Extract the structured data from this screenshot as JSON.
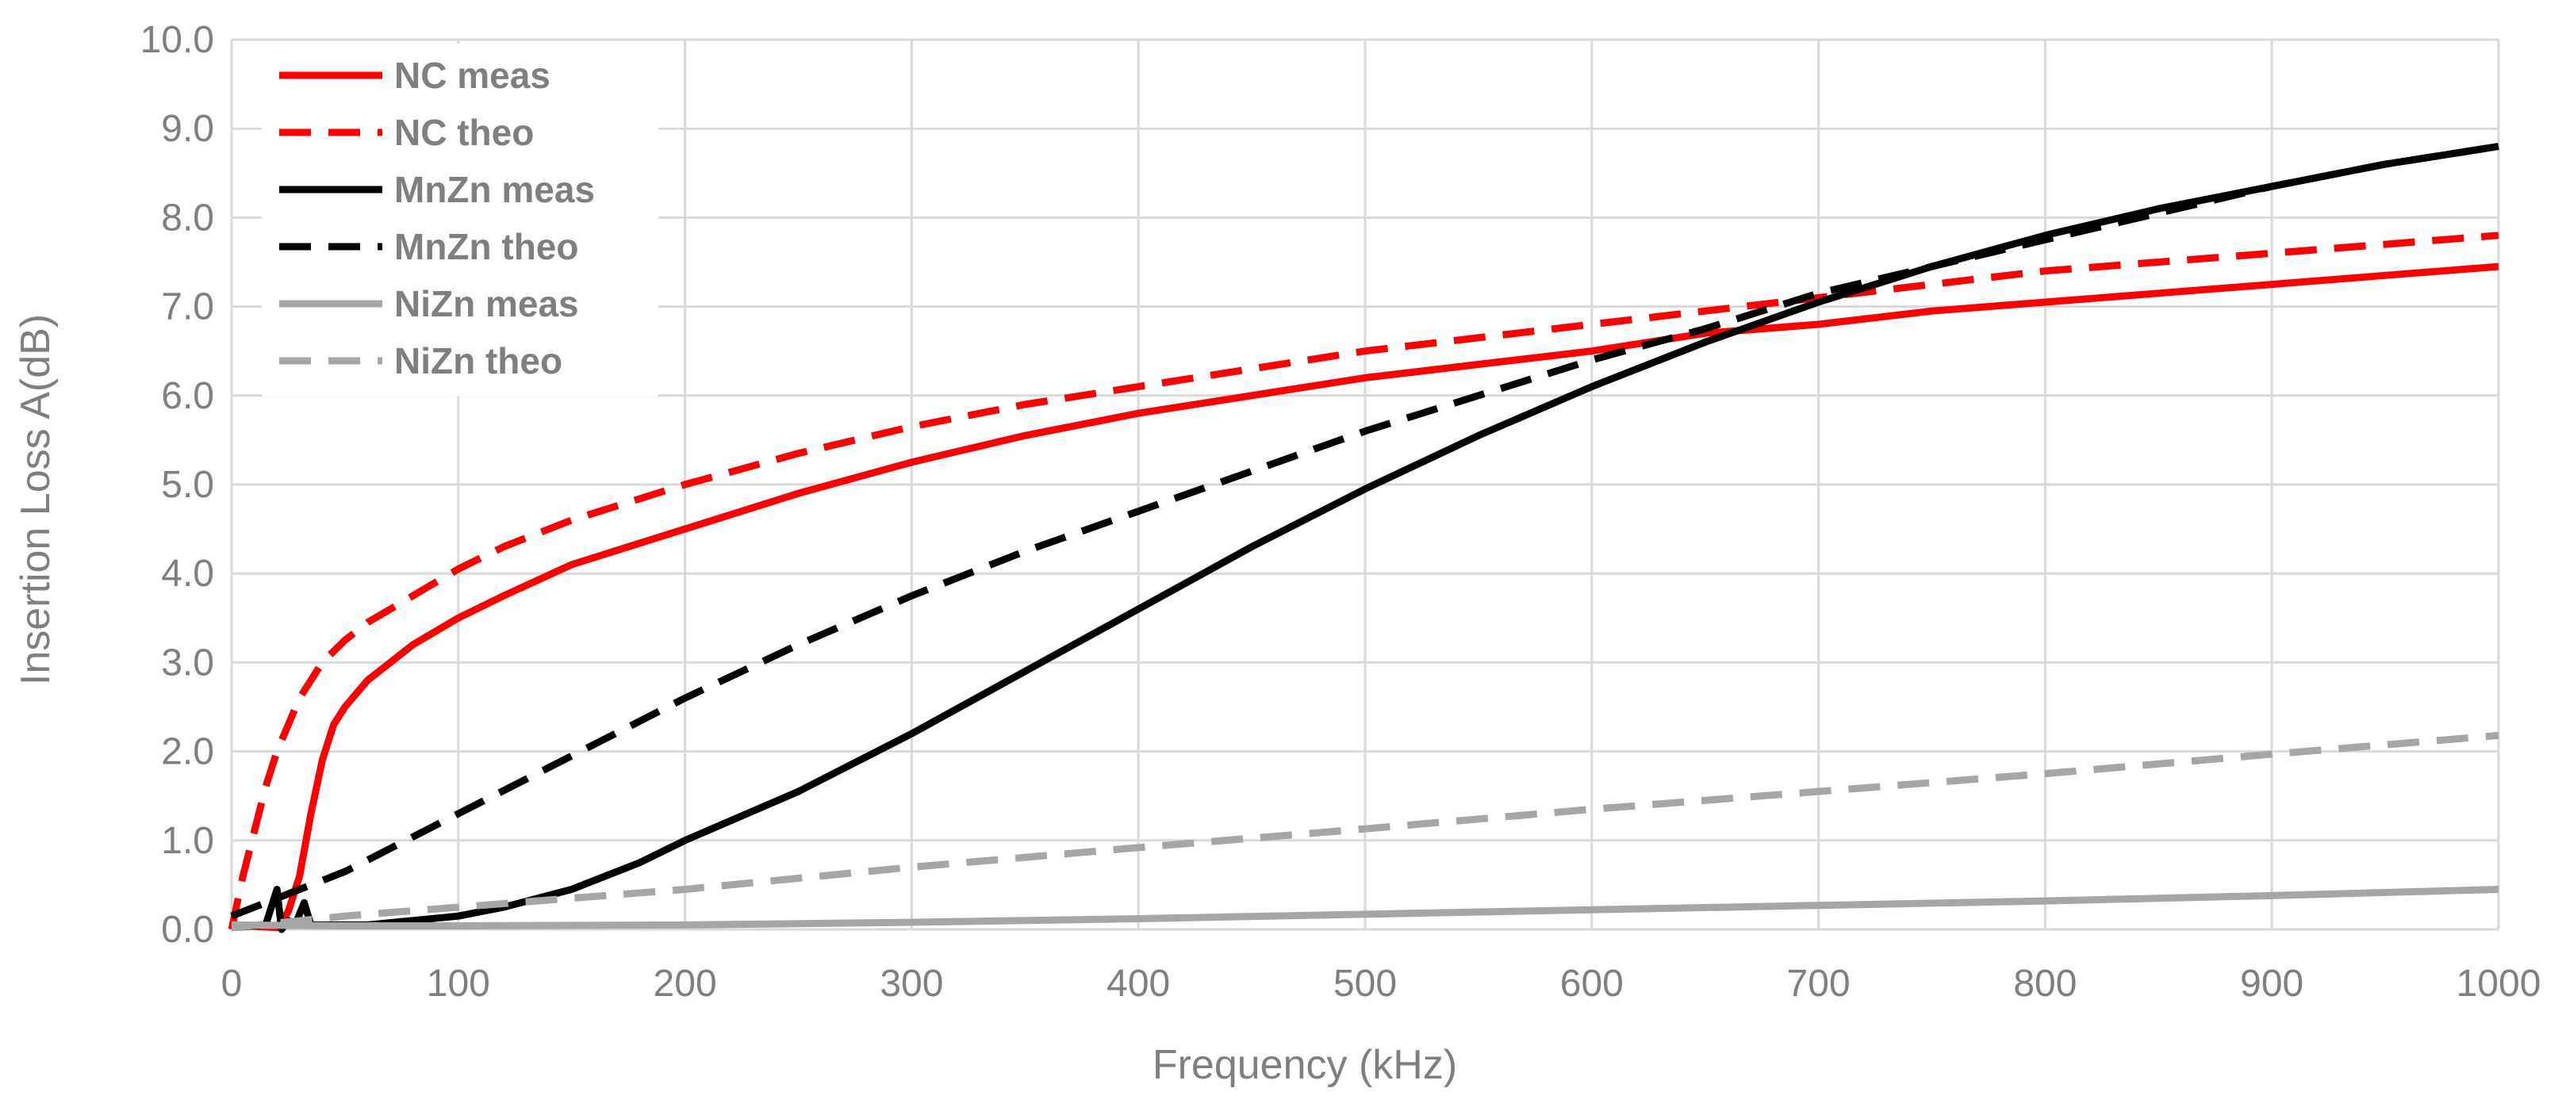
{
  "chart_data": {
    "type": "line",
    "title": "",
    "xlabel": "Frequency (kHz)",
    "ylabel": "Insertion Loss A(dB)",
    "xlim": [
      0,
      1000
    ],
    "ylim": [
      0,
      10
    ],
    "x_ticks": [
      "0",
      "100",
      "200",
      "300",
      "400",
      "500",
      "600",
      "700",
      "800",
      "900",
      "1000"
    ],
    "y_ticks": [
      "0.0",
      "1.0",
      "2.0",
      "3.0",
      "4.0",
      "5.0",
      "6.0",
      "7.0",
      "8.0",
      "9.0",
      "10.0"
    ],
    "grid": true,
    "legend_position": "top-left",
    "series": [
      {
        "name": "NC meas",
        "color": "#ff0000",
        "dash": "solid",
        "x": [
          0,
          20,
          25,
          30,
          35,
          40,
          45,
          50,
          60,
          70,
          80,
          90,
          100,
          120,
          150,
          200,
          250,
          300,
          350,
          400,
          450,
          500,
          550,
          600,
          650,
          700,
          750,
          800,
          850,
          900,
          950,
          1000
        ],
        "y": [
          0.05,
          0.02,
          0.2,
          0.6,
          1.3,
          1.9,
          2.3,
          2.5,
          2.8,
          3.0,
          3.2,
          3.35,
          3.5,
          3.75,
          4.1,
          4.5,
          4.9,
          5.25,
          5.55,
          5.8,
          6.0,
          6.2,
          6.35,
          6.5,
          6.7,
          6.8,
          6.95,
          7.05,
          7.15,
          7.25,
          7.35,
          7.45
        ]
      },
      {
        "name": "NC theo",
        "color": "#ff0000",
        "dash": "dashed",
        "x": [
          0,
          5,
          10,
          15,
          20,
          30,
          40,
          50,
          60,
          70,
          80,
          90,
          100,
          120,
          150,
          200,
          250,
          300,
          350,
          400,
          450,
          500,
          550,
          600,
          650,
          700,
          750,
          800,
          850,
          900,
          950,
          1000
        ],
        "y": [
          0,
          0.6,
          1.1,
          1.6,
          2.0,
          2.6,
          3.0,
          3.25,
          3.45,
          3.6,
          3.75,
          3.9,
          4.05,
          4.3,
          4.6,
          5.0,
          5.35,
          5.65,
          5.9,
          6.1,
          6.3,
          6.5,
          6.65,
          6.8,
          6.95,
          7.1,
          7.25,
          7.4,
          7.5,
          7.6,
          7.7,
          7.8
        ]
      },
      {
        "name": "MnZn meas",
        "color": "#000000",
        "dash": "solid",
        "x": [
          0,
          15,
          20,
          22,
          25,
          28,
          32,
          35,
          40,
          50,
          60,
          80,
          100,
          120,
          150,
          180,
          200,
          250,
          300,
          350,
          400,
          450,
          500,
          550,
          600,
          650,
          700,
          750,
          800,
          850,
          900,
          950,
          1000
        ],
        "y": [
          0.02,
          0.05,
          0.45,
          0.0,
          0.1,
          0.05,
          0.3,
          0.05,
          0.05,
          0.05,
          0.05,
          0.1,
          0.15,
          0.25,
          0.45,
          0.75,
          1.0,
          1.55,
          2.2,
          2.9,
          3.6,
          4.3,
          4.95,
          5.55,
          6.1,
          6.6,
          7.05,
          7.45,
          7.8,
          8.1,
          8.35,
          8.6,
          8.8
        ]
      },
      {
        "name": "MnZn theo",
        "color": "#000000",
        "dash": "dashed",
        "x": [
          0,
          50,
          100,
          150,
          200,
          250,
          300,
          350,
          400,
          450,
          500,
          550,
          600,
          650,
          700,
          750,
          800,
          850,
          900,
          950,
          1000
        ],
        "y": [
          0.15,
          0.65,
          1.3,
          1.95,
          2.6,
          3.2,
          3.75,
          4.25,
          4.7,
          5.15,
          5.6,
          6.0,
          6.4,
          6.75,
          7.15,
          7.45,
          7.75,
          8.05,
          8.35,
          8.6,
          8.8
        ]
      },
      {
        "name": "NiZn meas",
        "color": "#a6a6a6",
        "dash": "solid",
        "x": [
          0,
          50,
          100,
          200,
          300,
          400,
          500,
          600,
          700,
          800,
          900,
          1000
        ],
        "y": [
          0.05,
          0.04,
          0.04,
          0.05,
          0.08,
          0.12,
          0.17,
          0.22,
          0.27,
          0.32,
          0.38,
          0.45
        ]
      },
      {
        "name": "NiZn theo",
        "color": "#a6a6a6",
        "dash": "dashed",
        "x": [
          0,
          50,
          100,
          150,
          200,
          300,
          400,
          500,
          600,
          700,
          800,
          900,
          1000
        ],
        "y": [
          0.02,
          0.15,
          0.25,
          0.35,
          0.45,
          0.7,
          0.92,
          1.13,
          1.35,
          1.55,
          1.75,
          1.97,
          2.18
        ]
      }
    ]
  }
}
